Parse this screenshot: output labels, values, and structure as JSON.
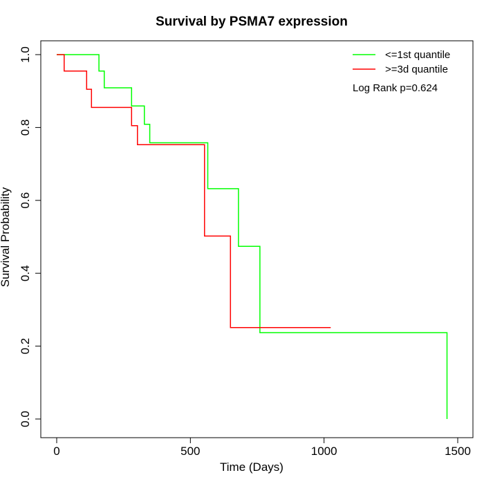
{
  "chart_data": {
    "type": "line",
    "subtype": "kaplan-meier step",
    "title": "Survival by PSMA7 expression",
    "xlabel": "Time (Days)",
    "ylabel": "Survival Probability",
    "xlim": [
      0,
      1500
    ],
    "ylim": [
      0,
      1
    ],
    "x_ticks": [
      0,
      500,
      1000,
      1500
    ],
    "y_ticks": [
      0.0,
      0.2,
      0.4,
      0.6,
      0.8,
      1.0
    ],
    "x_tick_labels": [
      "0",
      "500",
      "1000",
      "1500"
    ],
    "y_tick_labels": [
      "0.0",
      "0.2",
      "0.4",
      "0.6",
      "0.8",
      "1.0"
    ],
    "legend_position": "top-right",
    "annotation": "Log Rank p=0.624",
    "series": [
      {
        "name": "<=1st quantile",
        "color": "#00ff00",
        "x": [
          0,
          158,
          158,
          178,
          178,
          280,
          280,
          328,
          328,
          348,
          348,
          565,
          565,
          680,
          680,
          760,
          760,
          1460,
          1460
        ],
        "y": [
          1.0,
          1.0,
          0.955,
          0.955,
          0.909,
          0.909,
          0.859,
          0.859,
          0.809,
          0.809,
          0.758,
          0.758,
          0.632,
          0.632,
          0.474,
          0.474,
          0.237,
          0.237,
          0.0
        ]
      },
      {
        "name": ">=3d quantile",
        "color": "#ff0000",
        "x": [
          0,
          28,
          28,
          112,
          112,
          130,
          130,
          280,
          280,
          302,
          302,
          553,
          553,
          650,
          650,
          1025
        ],
        "y": [
          1.0,
          1.0,
          0.955,
          0.955,
          0.905,
          0.905,
          0.855,
          0.855,
          0.805,
          0.805,
          0.753,
          0.753,
          0.502,
          0.502,
          0.251,
          0.251
        ]
      }
    ]
  }
}
